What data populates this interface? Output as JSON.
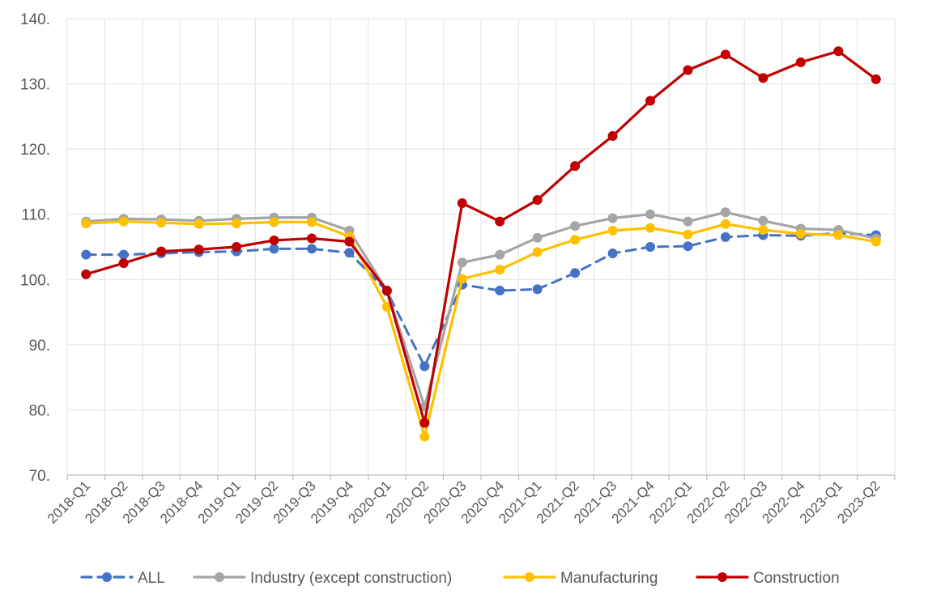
{
  "chart_data": {
    "type": "line",
    "categories": [
      "2018-Q1",
      "2018-Q2",
      "2018-Q3",
      "2018-Q4",
      "2019-Q1",
      "2019-Q2",
      "2019-Q3",
      "2019-Q4",
      "2020-Q1",
      "2020-Q2",
      "2020-Q3",
      "2020-Q4",
      "2021-Q1",
      "2021-Q2",
      "2021-Q3",
      "2021-Q4",
      "2022-Q1",
      "2022-Q2",
      "2022-Q3",
      "2022-Q4",
      "2023-Q1",
      "2023-Q2"
    ],
    "ylim": [
      70,
      140
    ],
    "yticks": [
      70,
      80,
      90,
      100,
      110,
      120,
      130,
      140
    ],
    "ytick_labels": [
      "70.",
      "80.",
      "90.",
      "100.",
      "110.",
      "120.",
      "130.",
      "140."
    ],
    "grid": true,
    "legend_position": "bottom",
    "series": [
      {
        "name": "ALL",
        "color": "#4472C4",
        "dash": true,
        "values": [
          103.8,
          103.8,
          104.0,
          104.2,
          104.3,
          104.7,
          104.7,
          104.1,
          98.2,
          86.7,
          99.2,
          98.3,
          98.5,
          101.0,
          104.0,
          105.0,
          105.1,
          106.5,
          106.8,
          106.7,
          107.1,
          106.8
        ]
      },
      {
        "name": "Industry (except construction)",
        "color": "#A5A5A5",
        "dash": false,
        "values": [
          108.9,
          109.3,
          109.2,
          109.0,
          109.3,
          109.5,
          109.5,
          107.5,
          98.3,
          80.5,
          102.6,
          103.8,
          106.4,
          108.2,
          109.4,
          110.0,
          108.9,
          110.3,
          109.0,
          107.8,
          107.6,
          106.3
        ]
      },
      {
        "name": "Manufacturing",
        "color": "#FFC000",
        "dash": false,
        "values": [
          108.6,
          108.9,
          108.7,
          108.5,
          108.6,
          108.8,
          108.8,
          106.6,
          95.8,
          75.9,
          100.1,
          101.5,
          104.2,
          106.1,
          107.5,
          107.9,
          106.9,
          108.5,
          107.6,
          107.0,
          106.8,
          105.8
        ]
      },
      {
        "name": "Construction",
        "color": "#C00000",
        "dash": false,
        "values": [
          100.8,
          102.5,
          104.3,
          104.6,
          105.0,
          106.0,
          106.3,
          105.8,
          98.3,
          78.0,
          111.7,
          108.9,
          112.2,
          117.4,
          122.0,
          127.4,
          132.1,
          134.5,
          130.9,
          133.3,
          135.0,
          130.7
        ]
      }
    ]
  }
}
